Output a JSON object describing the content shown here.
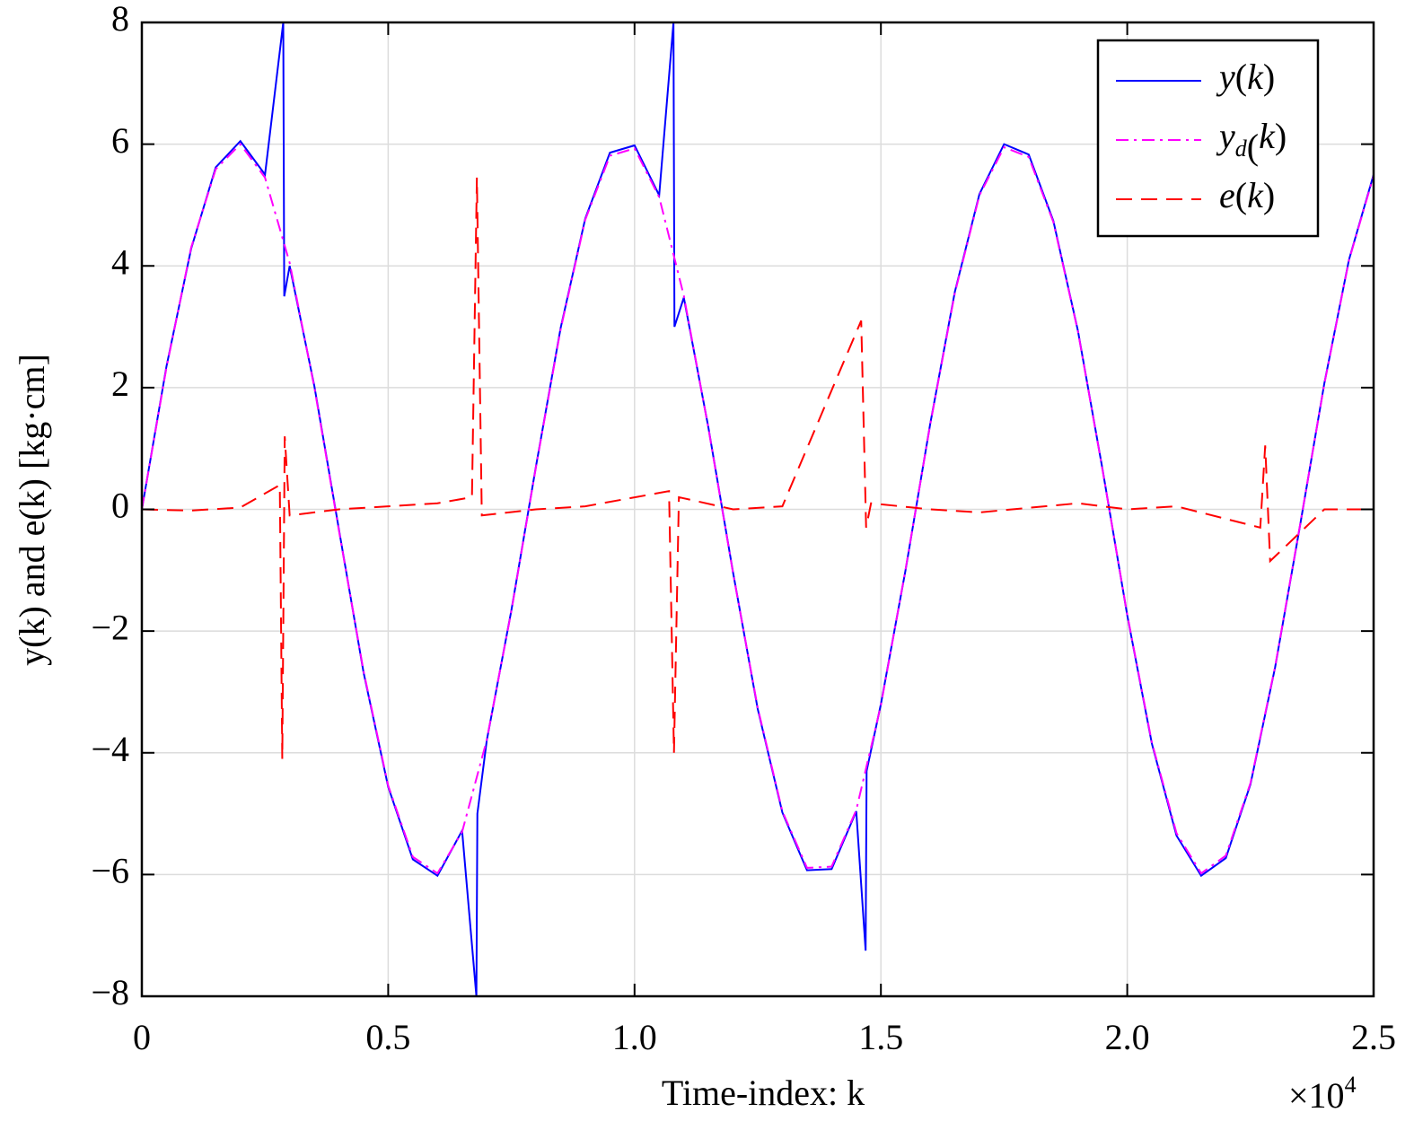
{
  "chart_data": {
    "type": "line",
    "x_label": "Time-index: k",
    "y_label": "y(k) and e(k) [kg·cm]",
    "x_multiplier": {
      "base": "×10",
      "exponent": "4"
    },
    "xlim": [
      0,
      2.5
    ],
    "ylim": [
      -8,
      8
    ],
    "xticks": [
      0,
      0.5,
      {
        "value": 1,
        "label": "1.0"
      },
      1.5,
      {
        "value": 2,
        "label": "2.0"
      },
      2.5
    ],
    "yticks": [
      {
        "value": -8,
        "label": "−8"
      },
      {
        "value": -6,
        "label": "−6"
      },
      {
        "value": -4,
        "label": "−4"
      },
      {
        "value": -2,
        "label": "−2"
      },
      0,
      2,
      4,
      6,
      8
    ],
    "grid": true,
    "legend": "upper right",
    "x": [
      0,
      0.05,
      0.1,
      0.15,
      0.2,
      0.25,
      0.3,
      0.35,
      0.4,
      0.45,
      0.5,
      0.55,
      0.6,
      0.65,
      0.7,
      0.75,
      0.8,
      0.85,
      0.9,
      0.95,
      1,
      1.05,
      1.1,
      1.15,
      1.2,
      1.25,
      1.3,
      1.35,
      1.4,
      1.45,
      1.5,
      1.55,
      1.6,
      1.65,
      1.7,
      1.75,
      1.8,
      1.85,
      1.9,
      1.95,
      2,
      2.05,
      2.1,
      2.15,
      2.2,
      2.25,
      2.3,
      2.35,
      2.4,
      2.45,
      2.5
    ],
    "series": [
      {
        "name": "y(k)",
        "color": "#0000ff",
        "style": "solid",
        "x": [
          0,
          0.05,
          0.1,
          0.15,
          0.2,
          0.25,
          0.287,
          0.289,
          0.3,
          0.35,
          0.4,
          0.45,
          0.5,
          0.55,
          0.6,
          0.65,
          0.679,
          0.681,
          0.7,
          0.75,
          0.8,
          0.85,
          0.9,
          0.95,
          1,
          1.05,
          1.079,
          1.081,
          1.1,
          1.15,
          1.2,
          1.25,
          1.3,
          1.35,
          1.4,
          1.45,
          1.469,
          1.471,
          1.5,
          1.55,
          1.6,
          1.65,
          1.7,
          1.75,
          1.8,
          1.85,
          1.9,
          1.95,
          2,
          2.05,
          2.1,
          2.15,
          2.2,
          2.25,
          2.3,
          2.35,
          2.4,
          2.45,
          2.5
        ],
        "values": [
          0,
          2.35,
          4.28,
          5.62,
          6.05,
          5.5,
          8,
          3.5,
          4.0,
          2.03,
          -0.33,
          -2.68,
          -4.56,
          -5.75,
          -6.02,
          -5.28,
          -8,
          -5.0,
          -3.8,
          -1.66,
          0.71,
          2.98,
          4.78,
          5.86,
          5.98,
          5.16,
          8,
          3.0,
          3.48,
          1.34,
          -1.04,
          -3.28,
          -4.98,
          -5.93,
          -5.91,
          -4.96,
          -7.25,
          -4.3,
          -3.2,
          -1.0,
          1.4,
          3.57,
          5.18,
          6.0,
          5.83,
          4.74,
          2.93,
          0.65,
          -1.74,
          -3.85,
          -5.36,
          -6.02,
          -5.73,
          -4.52,
          -2.6,
          -0.3,
          2.07,
          4.1,
          5.5
        ]
      },
      {
        "name": "yd(k)",
        "color": "#ff00ff",
        "style": "dashdot",
        "values": [
          0,
          2.33,
          4.3,
          5.59,
          6,
          5.45,
          4.05,
          2.01,
          -0.35,
          -2.66,
          -4.54,
          -5.71,
          -5.98,
          -5.3,
          -3.79,
          -1.67,
          0.7,
          2.96,
          4.76,
          5.81,
          5.93,
          5.13,
          3.51,
          1.33,
          -1.05,
          -3.26,
          -4.96,
          -5.89,
          -5.87,
          -4.94,
          -3.22,
          -0.99,
          1.39,
          3.55,
          5.16,
          5.95,
          5.79,
          4.72,
          2.92,
          0.64,
          -1.73,
          -3.83,
          -5.32,
          -5.98,
          -5.69,
          -4.5,
          -2.59,
          -0.29,
          2.06,
          4.09,
          5.48
        ]
      },
      {
        "name": "e(k)",
        "color": "#ff0000",
        "style": "dashed",
        "x": [
          0,
          0.1,
          0.2,
          0.28,
          0.285,
          0.29,
          0.3,
          0.4,
          0.5,
          0.6,
          0.67,
          0.68,
          0.69,
          0.8,
          0.9,
          1.07,
          1.08,
          1.09,
          1.2,
          1.3,
          1.46,
          1.47,
          1.48,
          1.6,
          1.7,
          1.9,
          2,
          2.1,
          2.27,
          2.28,
          2.29,
          2.4,
          2.5
        ],
        "values": [
          0,
          -0.02,
          0.03,
          0.4,
          -4.1,
          1.2,
          -0.1,
          0,
          0.05,
          0.1,
          0.2,
          5.45,
          -0.1,
          0,
          0.05,
          0.3,
          -4,
          0.2,
          0,
          0.05,
          3.1,
          -0.3,
          0.1,
          0,
          -0.05,
          0.1,
          0,
          0.05,
          -0.3,
          1.05,
          -0.85,
          0,
          0
        ]
      }
    ]
  }
}
